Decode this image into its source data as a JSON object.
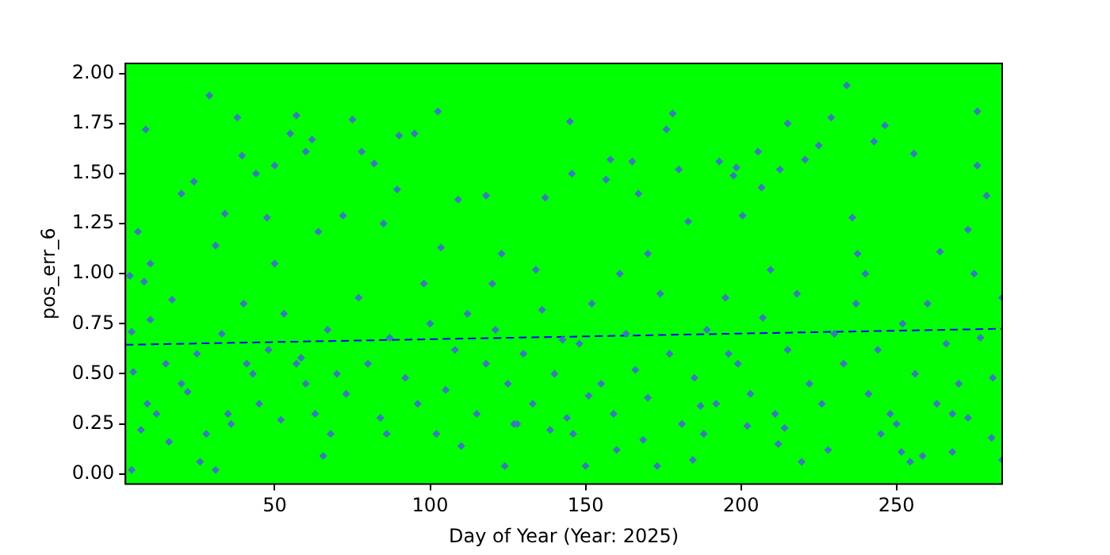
{
  "chart_data": {
    "type": "scatter",
    "xlabel": "Day of Year (Year: 2025)",
    "ylabel": "pos_err_6",
    "xlim": [
      2,
      284
    ],
    "ylim": [
      -0.05,
      2.05
    ],
    "xticks": [
      50,
      100,
      150,
      200,
      250
    ],
    "yticks": [
      {
        "value": 0,
        "label": "0.00"
      },
      {
        "value": 0.25,
        "label": "0.25"
      },
      {
        "value": 0.5,
        "label": "0.50"
      },
      {
        "value": 0.75,
        "label": "0.75"
      },
      {
        "value": 1,
        "label": "1.00"
      },
      {
        "value": 1.25,
        "label": "1.25"
      },
      {
        "value": 1.5,
        "label": "1.50"
      },
      {
        "value": 1.75,
        "label": "1.75"
      },
      {
        "value": 2,
        "label": "2.00"
      }
    ],
    "legend": false,
    "marker": "diamond",
    "series": [
      {
        "color": "#3c78c0",
        "x": [
          3.4,
          4,
          4,
          4.5,
          6,
          7,
          8.5,
          9,
          10,
          8,
          16,
          17,
          20,
          24,
          22,
          26,
          29,
          31,
          31,
          34,
          35,
          38,
          39.5,
          41,
          44,
          47.5,
          50,
          52,
          55,
          57,
          58.5,
          60,
          62,
          64,
          65.6,
          68,
          72,
          75,
          78,
          82,
          85,
          89.4,
          90,
          95,
          98,
          102.5,
          103.5,
          109,
          110,
          118,
          124,
          123,
          127,
          134,
          137,
          138.6,
          142.6,
          145,
          145.6,
          150,
          151,
          156.6,
          158,
          161,
          165,
          167,
          168.5,
          173,
          176,
          178,
          180,
          183,
          184.5,
          187,
          193,
          196,
          197.6,
          198.5,
          200.5,
          202,
          205.5,
          206.6,
          209.5,
          212.5,
          215,
          214,
          219.5,
          220.6,
          225,
          229,
          234,
          235.8,
          237.5,
          242.8,
          246.3,
          245,
          251.6,
          255.6,
          254.4,
          258.4,
          264,
          268,
          273,
          276,
          276,
          279,
          280.6,
          284,
          284,
          20,
          25,
          33,
          40,
          45,
          48,
          53,
          60,
          63,
          67,
          70,
          73,
          77,
          80,
          84,
          87,
          92,
          96,
          100,
          105,
          108,
          112,
          115,
          118,
          121,
          125,
          130,
          133,
          136,
          140,
          144,
          148,
          152,
          155,
          159,
          163,
          166,
          170,
          174,
          177,
          181,
          185,
          189,
          192,
          195,
          199,
          203,
          207,
          211,
          215,
          218,
          222,
          226,
          230,
          233,
          237,
          241,
          244,
          248,
          252,
          256,
          260,
          263,
          266,
          270,
          273,
          277,
          281,
          12,
          15,
          28,
          36,
          43,
          57,
          86,
          102,
          128,
          146,
          160,
          188,
          212,
          228,
          250,
          268,
          10,
          50,
          120,
          170,
          240,
          275
        ],
        "values": [
          0.99,
          0.71,
          0.02,
          0.51,
          1.21,
          0.22,
          1.72,
          0.35,
          0.77,
          0.96,
          0.16,
          0.87,
          1.4,
          1.46,
          0.41,
          0.06,
          1.89,
          1.14,
          0.02,
          1.3,
          0.3,
          1.78,
          1.59,
          0.55,
          1.5,
          1.28,
          1.54,
          0.27,
          1.7,
          1.79,
          0.58,
          1.61,
          1.67,
          1.21,
          0.09,
          0.2,
          1.29,
          1.77,
          1.61,
          1.55,
          1.25,
          1.42,
          1.69,
          1.7,
          0.95,
          1.81,
          1.13,
          1.37,
          0.14,
          1.39,
          0.04,
          1.1,
          0.25,
          1.02,
          1.38,
          0.22,
          0.67,
          1.76,
          1.5,
          0.04,
          0.39,
          1.47,
          1.57,
          1.0,
          1.56,
          1.4,
          0.17,
          0.04,
          1.72,
          1.8,
          1.52,
          1.26,
          0.07,
          0.34,
          1.56,
          0.6,
          1.49,
          1.53,
          1.29,
          0.24,
          1.61,
          1.43,
          1.02,
          1.52,
          1.75,
          0.23,
          0.06,
          1.57,
          1.64,
          1.78,
          1.94,
          1.28,
          1.1,
          1.66,
          1.74,
          0.2,
          0.11,
          1.6,
          0.06,
          0.09,
          1.11,
          0.11,
          1.22,
          1.81,
          1.54,
          1.39,
          0.18,
          0.07,
          0.88,
          0.45,
          0.6,
          0.7,
          0.85,
          0.35,
          0.62,
          0.8,
          0.45,
          0.3,
          0.72,
          0.5,
          0.4,
          0.88,
          0.55,
          0.28,
          0.68,
          0.48,
          0.35,
          0.75,
          0.42,
          0.62,
          0.8,
          0.3,
          0.55,
          0.72,
          0.45,
          0.6,
          0.35,
          0.82,
          0.5,
          0.28,
          0.65,
          0.85,
          0.45,
          0.3,
          0.7,
          0.52,
          0.38,
          0.9,
          0.6,
          0.25,
          0.48,
          0.72,
          0.35,
          0.88,
          0.55,
          0.4,
          0.78,
          0.3,
          0.62,
          0.9,
          0.45,
          0.35,
          0.7,
          0.55,
          0.85,
          0.4,
          0.62,
          0.3,
          0.75,
          0.5,
          0.85,
          0.35,
          0.65,
          0.45,
          0.28,
          0.68,
          0.48,
          0.3,
          0.55,
          0.2,
          0.25,
          0.5,
          0.55,
          0.2,
          0.2,
          0.25,
          0.2,
          0.12,
          0.2,
          0.15,
          0.12,
          0.25,
          0.3,
          1.05,
          1.05,
          0.95,
          1.1,
          1.0,
          1.0
        ]
      },
      {
        "type": "line",
        "color": "#0000ff",
        "line_style": "dashed",
        "marker": "none",
        "x": [
          2,
          284
        ],
        "values": [
          0.645,
          0.725
        ]
      }
    ]
  }
}
